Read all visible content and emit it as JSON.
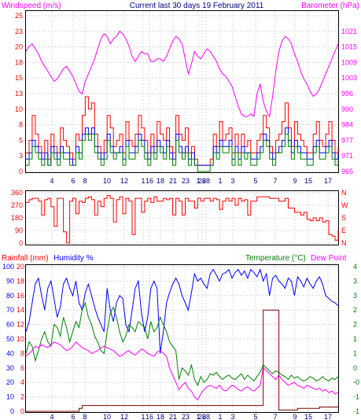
{
  "chart_data": [
    {
      "type": "line",
      "title": "Current last 30 days 19 February 2011",
      "ylabel_left": "Windspeed (m/s)",
      "ylabel_right": "Barometer (hPa)",
      "left_ticks": [
        "0",
        "3",
        "5",
        "8",
        "10",
        "13",
        "15",
        "18",
        "20",
        "23",
        "25"
      ],
      "right_ticks": [
        "965",
        "971",
        "977",
        "984",
        "990",
        "996",
        "1003",
        "1009",
        "1015",
        "1021"
      ],
      "x_ticks": [
        "4",
        "6",
        "8",
        "10",
        "12",
        "1",
        "16",
        "18",
        "21",
        "23",
        "1",
        "26",
        "28",
        "1",
        "3",
        "5",
        "7",
        "9",
        "15",
        "17"
      ],
      "ylim_left": [
        0,
        25
      ],
      "ylim_right": [
        965,
        1021
      ],
      "colors": {
        "windspeed": "#ff0000",
        "gust": "#008000",
        "average": "#0000ff",
        "barometer": "#ff00ff"
      },
      "series": [
        {
          "name": "Barometer (hPa)",
          "axis": "right",
          "values": [
            1013,
            1015,
            1016,
            1014,
            1012,
            1009,
            1007,
            1005,
            1003,
            1001,
            1002,
            1004,
            1006,
            1007,
            1005,
            1003,
            1000,
            997,
            996,
            1001,
            1004,
            1007,
            1010,
            1014,
            1018,
            1020,
            1019,
            1016,
            1018,
            1019,
            1021,
            1020,
            1018,
            1015,
            1011,
            1009,
            1011,
            1013,
            1012,
            1012,
            1009,
            1009,
            1010,
            1010,
            1009,
            1011,
            1014,
            1017,
            1019,
            1018,
            1016,
            1010,
            1004,
            1008,
            1013,
            1011,
            1010,
            1012,
            1014,
            1013,
            1011,
            1009,
            1006,
            1004,
            1003,
            1001,
            999,
            995,
            991,
            988,
            987,
            987,
            988,
            987,
            996,
            1000,
            993,
            989,
            987,
            995,
            1005,
            1013,
            1017,
            1019,
            1018,
            1016,
            1012,
            1009,
            1005,
            1002,
            1000,
            997,
            995,
            996,
            998,
            1001,
            1004,
            1007,
            1010,
            1013,
            1016
          ]
        },
        {
          "name": "Windspeed (m/s)",
          "axis": "left",
          "values": [
            3,
            5,
            9,
            6,
            4,
            3,
            5,
            2,
            6,
            4,
            3,
            7,
            5,
            4,
            3,
            2,
            6,
            5,
            9,
            12,
            10,
            11,
            6,
            4,
            3,
            5,
            9,
            7,
            4,
            5,
            6,
            3,
            8,
            5,
            4,
            6,
            9,
            7,
            5,
            3,
            6,
            4,
            8,
            6,
            5,
            7,
            4,
            3,
            9,
            6,
            5,
            7,
            3,
            4,
            2,
            1,
            1,
            1,
            1,
            2,
            6,
            4,
            8,
            5,
            6,
            7,
            3,
            6,
            3,
            6,
            4,
            5,
            3,
            3,
            5,
            6,
            9,
            7,
            4,
            3,
            5,
            6,
            8,
            11,
            7,
            4,
            8,
            6,
            5,
            4,
            3,
            3,
            6,
            8,
            5,
            4,
            6,
            8,
            5,
            3,
            4
          ]
        },
        {
          "name": "Gust",
          "axis": "left",
          "values": [
            1,
            2,
            4,
            3,
            2,
            1,
            2,
            1,
            3,
            2,
            1,
            3,
            2,
            2,
            1,
            1,
            3,
            2,
            5,
            6,
            5,
            6,
            3,
            2,
            1,
            2,
            5,
            3,
            2,
            3,
            3,
            1,
            4,
            2,
            2,
            3,
            5,
            4,
            2,
            1,
            3,
            2,
            4,
            3,
            2,
            4,
            2,
            1,
            5,
            3,
            2,
            3,
            1,
            2,
            1,
            0,
            0,
            0,
            0,
            1,
            3,
            2,
            4,
            3,
            3,
            4,
            1,
            3,
            1,
            3,
            2,
            3,
            1,
            1,
            2,
            3,
            5,
            4,
            2,
            1,
            3,
            3,
            4,
            6,
            4,
            2,
            4,
            3,
            2,
            2,
            1,
            1,
            3,
            4,
            2,
            2,
            3,
            4,
            2,
            1,
            2
          ]
        },
        {
          "name": "Average",
          "axis": "left",
          "values": [
            2,
            3,
            5,
            4,
            3,
            2,
            3,
            1,
            4,
            3,
            2,
            4,
            3,
            3,
            2,
            1,
            4,
            3,
            6,
            7,
            6,
            7,
            4,
            3,
            2,
            3,
            6,
            4,
            3,
            3,
            4,
            2,
            5,
            3,
            3,
            4,
            6,
            5,
            3,
            2,
            4,
            3,
            5,
            4,
            3,
            5,
            3,
            2,
            6,
            4,
            3,
            4,
            2,
            3,
            1,
            1,
            1,
            1,
            1,
            1,
            4,
            3,
            5,
            4,
            4,
            5,
            2,
            4,
            2,
            4,
            3,
            3,
            2,
            2,
            3,
            4,
            6,
            5,
            3,
            2,
            3,
            4,
            5,
            7,
            5,
            3,
            5,
            4,
            3,
            3,
            2,
            2,
            4,
            5,
            3,
            3,
            4,
            5,
            3,
            2,
            3
          ]
        }
      ]
    },
    {
      "type": "line",
      "left_ticks": [
        "0",
        "90",
        "180",
        "270",
        "360"
      ],
      "right_ticks": [
        "N",
        "E",
        "S",
        "W",
        "N"
      ],
      "ylim": [
        0,
        360
      ],
      "series": [
        {
          "name": "Wind direction",
          "values": [
            290,
            310,
            320,
            320,
            300,
            200,
            310,
            320,
            260,
            120,
            320,
            320,
            80,
            0,
            300,
            320,
            210,
            300,
            290,
            320,
            330,
            310,
            200,
            300,
            260,
            320,
            340,
            320,
            150,
            310,
            330,
            210,
            320,
            300,
            60,
            320,
            320,
            220,
            300,
            320,
            290,
            330,
            300,
            300,
            320,
            310,
            320,
            200,
            320,
            300,
            200,
            320,
            300,
            300,
            250,
            320,
            300,
            320,
            320,
            300,
            320,
            310,
            240,
            300,
            320,
            300,
            320,
            270,
            320,
            300,
            310,
            200,
            300,
            300,
            330,
            330,
            330,
            330,
            320,
            320,
            320,
            300,
            300,
            320,
            250,
            250,
            220,
            220,
            200,
            220,
            170,
            160,
            180,
            160,
            180,
            150,
            160,
            60,
            50,
            20,
            90
          ]
        }
      ]
    },
    {
      "type": "line",
      "ylabel_rainfall": "Rainfall (mm)",
      "ylabel_humidity": "Humidity %",
      "ylabel_temperature": "Temperature (°C)",
      "ylabel_dewpoint": "Dew Point",
      "humidity_ticks": [
        "0",
        "10",
        "20",
        "30",
        "40",
        "50",
        "60",
        "70",
        "80",
        "90",
        "100"
      ],
      "rainfall_ticks": [
        "0",
        "2",
        "4",
        "6",
        "8",
        "10",
        "12",
        "14",
        "16",
        "18",
        "20"
      ],
      "temperature_ticks": [
        "-1",
        "-1",
        "-0",
        "0",
        "1",
        "1",
        "2",
        "2",
        "3",
        "3",
        "4"
      ],
      "ylim_humidity": [
        0,
        100
      ],
      "colors": {
        "rainfall": "#800000",
        "humidity": "#0000ff",
        "temperature": "#008000",
        "dewpoint": "#ff00ff"
      },
      "series": [
        {
          "name": "Humidity %",
          "values": [
            55,
            62,
            75,
            88,
            92,
            80,
            70,
            85,
            90,
            78,
            65,
            72,
            88,
            92,
            85,
            80,
            90,
            75,
            70,
            82,
            88,
            80,
            72,
            65,
            60,
            55,
            85,
            70,
            62,
            75,
            80,
            78,
            60,
            55,
            70,
            85,
            90,
            68,
            55,
            65,
            85,
            90,
            85,
            40,
            55,
            75,
            82,
            88,
            92,
            88,
            80,
            75,
            70,
            82,
            95,
            90,
            92,
            88,
            85,
            95,
            98,
            94,
            90,
            95,
            96,
            98,
            92,
            96,
            98,
            94,
            97,
            92,
            98,
            96,
            93,
            98,
            90,
            95,
            80,
            92,
            94,
            90,
            88,
            85,
            92,
            90,
            80,
            93,
            90,
            86,
            92,
            88,
            85,
            90,
            93,
            88,
            80,
            78,
            76,
            75,
            73
          ]
        },
        {
          "name": "Temperature (°C)",
          "values": [
            40,
            48,
            45,
            35,
            42,
            50,
            55,
            48,
            45,
            60,
            58,
            52,
            65,
            58,
            48,
            55,
            62,
            58,
            70,
            75,
            65,
            60,
            52,
            48,
            42,
            40,
            55,
            68,
            72,
            65,
            55,
            48,
            52,
            60,
            58,
            55,
            62,
            60,
            58,
            50,
            62,
            55,
            58,
            65,
            60,
            55,
            48,
            45,
            42,
            22,
            30,
            28,
            25,
            32,
            22,
            18,
            24,
            20,
            22,
            26,
            25,
            27,
            24,
            22,
            24,
            25,
            23,
            22,
            24,
            26,
            22,
            25,
            23,
            21,
            24,
            27,
            32,
            30,
            28,
            26,
            28,
            27,
            25,
            24,
            22,
            25,
            23,
            24,
            22,
            21,
            22,
            24,
            23,
            21,
            22,
            24,
            22,
            21,
            23,
            22,
            24
          ]
        },
        {
          "name": "Dew Point",
          "values": [
            38,
            40,
            42,
            45,
            44,
            46,
            45,
            44,
            46,
            48,
            47,
            46,
            44,
            42,
            43,
            45,
            48,
            46,
            44,
            43,
            42,
            40,
            41,
            42,
            44,
            45,
            44,
            43,
            42,
            40,
            38,
            39,
            41,
            42,
            40,
            39,
            41,
            43,
            42,
            40,
            39,
            38,
            41,
            42,
            40,
            38,
            30,
            25,
            20,
            15,
            18,
            20,
            16,
            14,
            10,
            8,
            12,
            15,
            17,
            18,
            17,
            16,
            18,
            15,
            14,
            16,
            18,
            17,
            15,
            14,
            16,
            17,
            15,
            14,
            16,
            18,
            30,
            28,
            26,
            24,
            22,
            25,
            22,
            20,
            18,
            19,
            20,
            18,
            17,
            16,
            18,
            17,
            16,
            15,
            16,
            14,
            15,
            13,
            14,
            12,
            13
          ]
        },
        {
          "name": "Rainfall (mm)",
          "values": [
            0,
            0,
            0,
            0,
            0,
            0,
            0,
            0,
            0,
            0,
            0,
            0,
            0,
            0,
            0,
            0,
            0,
            0.4,
            0.8,
            0.8,
            0.8,
            0.8,
            0.8,
            0.8,
            0.8,
            0.8,
            0.8,
            0.8,
            0.8,
            0.8,
            0.8,
            0.8,
            0.8,
            0.8,
            0.8,
            0.8,
            0.8,
            0.8,
            0.8,
            0.8,
            0.8,
            0.8,
            0.8,
            0.8,
            0.8,
            0.8,
            0.8,
            0.8,
            0.8,
            0.8,
            0.8,
            0.8,
            0.8,
            0.8,
            0.8,
            0.8,
            0.8,
            0.8,
            0.8,
            0.8,
            0.8,
            0.8,
            0.8,
            0.8,
            0.8,
            0.8,
            0.8,
            0.8,
            0.8,
            0.8,
            0.8,
            0.8,
            0.8,
            0.8,
            0.8,
            0.8,
            14,
            14,
            14,
            14,
            14,
            0.2,
            0.2,
            0.2,
            0.2,
            0.2,
            0.2,
            0.4,
            0.4,
            0.4,
            0.4,
            0.4,
            0.4,
            0.4,
            0.6,
            0.6,
            0.6,
            0.6,
            0.6,
            0.6,
            0.6
          ]
        }
      ]
    }
  ]
}
